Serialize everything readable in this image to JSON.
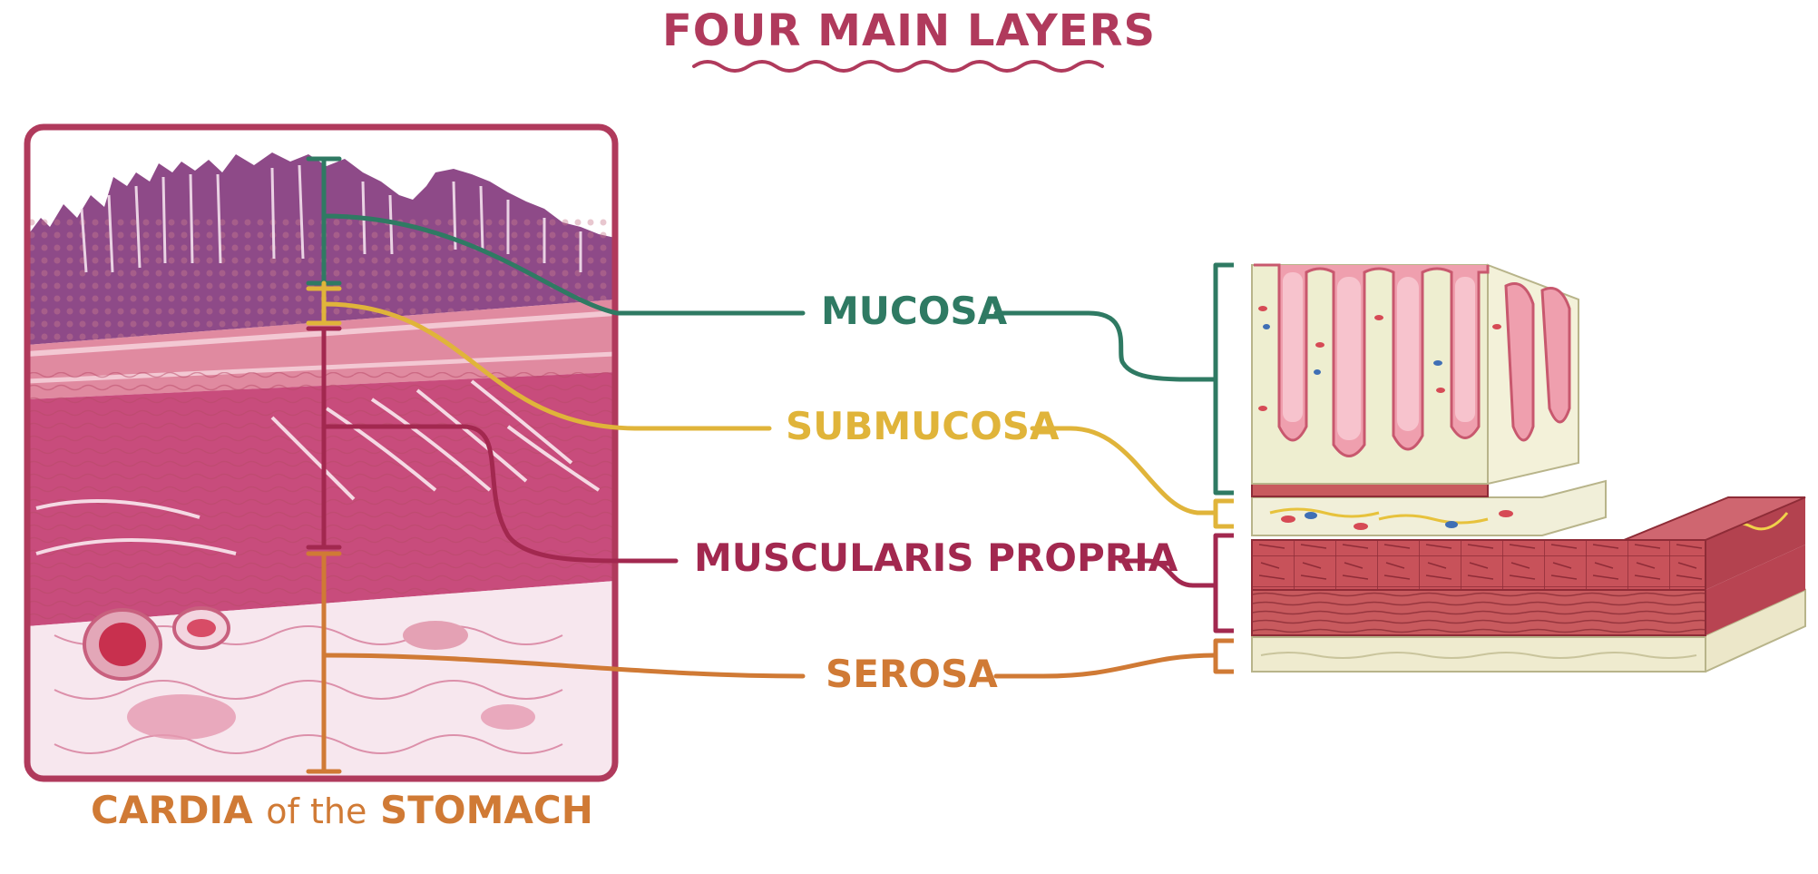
{
  "title": "FOUR MAIN LAYERS",
  "caption": {
    "part1": "CARDIA",
    "part2": "of the",
    "part3": "STOMACH"
  },
  "layers": {
    "mucosa": "MUCOSA",
    "submucosa": "SUBMUCOSA",
    "muscularis": "MUSCULARIS PROPRIA",
    "serosa": "SEROSA"
  },
  "colors": {
    "title": "#b03a5c",
    "mucosa": "#2f7a63",
    "submucosa": "#e0b43a",
    "muscularis": "#a2284f",
    "serosa": "#d07a35",
    "frame": "#b03a5c"
  }
}
